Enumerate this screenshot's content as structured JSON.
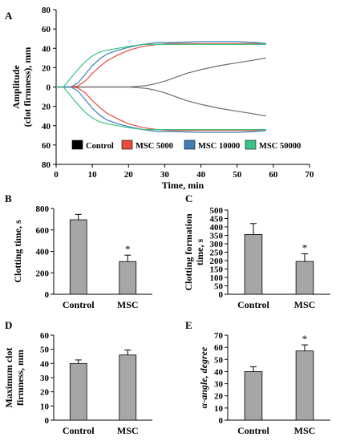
{
  "chart_data": [
    {
      "panel": "A",
      "type": "line",
      "xlabel": "Time, min",
      "ylabel_lines": [
        "Amplitude",
        "(clot firmness), mm"
      ],
      "xlim": [
        0,
        70
      ],
      "ylim": [
        -80,
        80
      ],
      "xticks": [
        0,
        10,
        20,
        30,
        40,
        50,
        60,
        70
      ],
      "yticks": [
        80,
        60,
        40,
        20,
        0,
        20,
        40,
        60,
        80
      ],
      "legend_position": "inside-bottom",
      "series": [
        {
          "name": "Control",
          "color": "#6b6b6b",
          "x": [
            0,
            5,
            10,
            15,
            20,
            22,
            25,
            27,
            30,
            33,
            36,
            40,
            45,
            50,
            55,
            58
          ],
          "upper": [
            0,
            0,
            0,
            0,
            0,
            0.5,
            1.5,
            3,
            6,
            10,
            14,
            18,
            22,
            25,
            28,
            30
          ],
          "lower": [
            0,
            0,
            0,
            0,
            0,
            -0.5,
            -1.5,
            -3,
            -6,
            -10,
            -14,
            -18,
            -22,
            -25,
            -28,
            -30
          ]
        },
        {
          "name": "MSC 5000",
          "color": "#e74c3c",
          "x": [
            0,
            4,
            6,
            8,
            10,
            12,
            14,
            17,
            20,
            24,
            28,
            32,
            40,
            50,
            55,
            58
          ],
          "upper": [
            0,
            0,
            1,
            6,
            14,
            21,
            27,
            33,
            38,
            42,
            44,
            45,
            45,
            45,
            45,
            45
          ],
          "lower": [
            0,
            0,
            -1,
            -6,
            -14,
            -21,
            -27,
            -33,
            -38,
            -42,
            -44,
            -45,
            -45,
            -45,
            -45,
            -45
          ]
        },
        {
          "name": "MSC 10000",
          "color": "#3f7fb8",
          "x": [
            0,
            4,
            6,
            8,
            10,
            12,
            14,
            17,
            20,
            24,
            28,
            32,
            40,
            50,
            55,
            58
          ],
          "upper": [
            0,
            0,
            4,
            13,
            22,
            29,
            34,
            38,
            41,
            44,
            46,
            46,
            47,
            47,
            46,
            45
          ],
          "lower": [
            0,
            0,
            -4,
            -13,
            -22,
            -29,
            -34,
            -38,
            -41,
            -44,
            -46,
            -46,
            -47,
            -47,
            -46,
            -45
          ]
        },
        {
          "name": "MSC 50000",
          "color": "#3cc187",
          "x": [
            0,
            2,
            4,
            6,
            8,
            10,
            12,
            14,
            17,
            20,
            24,
            28,
            32,
            40,
            50,
            58
          ],
          "upper": [
            0,
            0,
            9,
            18,
            26,
            32,
            36,
            38,
            40,
            42,
            44,
            44,
            44,
            44,
            44,
            44
          ],
          "lower": [
            0,
            0,
            -9,
            -18,
            -26,
            -32,
            -36,
            -38,
            -40,
            -42,
            -44,
            -44,
            -44,
            -44,
            -44,
            -44
          ]
        }
      ]
    },
    {
      "panel": "B",
      "type": "bar",
      "ylabel": "Clotting time, s",
      "categories": [
        "Control",
        "MSC"
      ],
      "values": [
        695,
        305
      ],
      "errors": [
        50,
        60
      ],
      "ylim": [
        0,
        800
      ],
      "yticks": [
        0,
        200,
        400,
        600,
        800
      ],
      "significance": [
        "",
        "*"
      ]
    },
    {
      "panel": "C",
      "type": "bar",
      "ylabel_lines": [
        "Clotting formation",
        "time, s"
      ],
      "categories": [
        "Control",
        "MSC"
      ],
      "values": [
        355,
        195
      ],
      "errors": [
        65,
        45
      ],
      "ylim": [
        0,
        500
      ],
      "yticks": [
        0,
        50,
        100,
        150,
        200,
        250,
        300,
        350,
        400,
        450,
        500
      ],
      "significance": [
        "",
        "*"
      ]
    },
    {
      "panel": "D",
      "type": "bar",
      "ylabel_lines": [
        "Maximum clot",
        "firmness, mm"
      ],
      "categories": [
        "Control",
        "MSC"
      ],
      "values": [
        40,
        46
      ],
      "errors": [
        2.5,
        3.5
      ],
      "ylim": [
        0,
        60
      ],
      "yticks": [
        0,
        10,
        20,
        30,
        40,
        50,
        60
      ],
      "significance": [
        "",
        ""
      ]
    },
    {
      "panel": "E",
      "type": "bar",
      "ylabel": "α-angle, degree",
      "categories": [
        "Control",
        "MSC"
      ],
      "values": [
        40,
        57
      ],
      "errors": [
        4,
        5
      ],
      "ylim": [
        0,
        70
      ],
      "yticks": [
        0,
        10,
        20,
        30,
        40,
        50,
        60,
        70
      ],
      "significance": [
        "",
        "*"
      ]
    }
  ]
}
